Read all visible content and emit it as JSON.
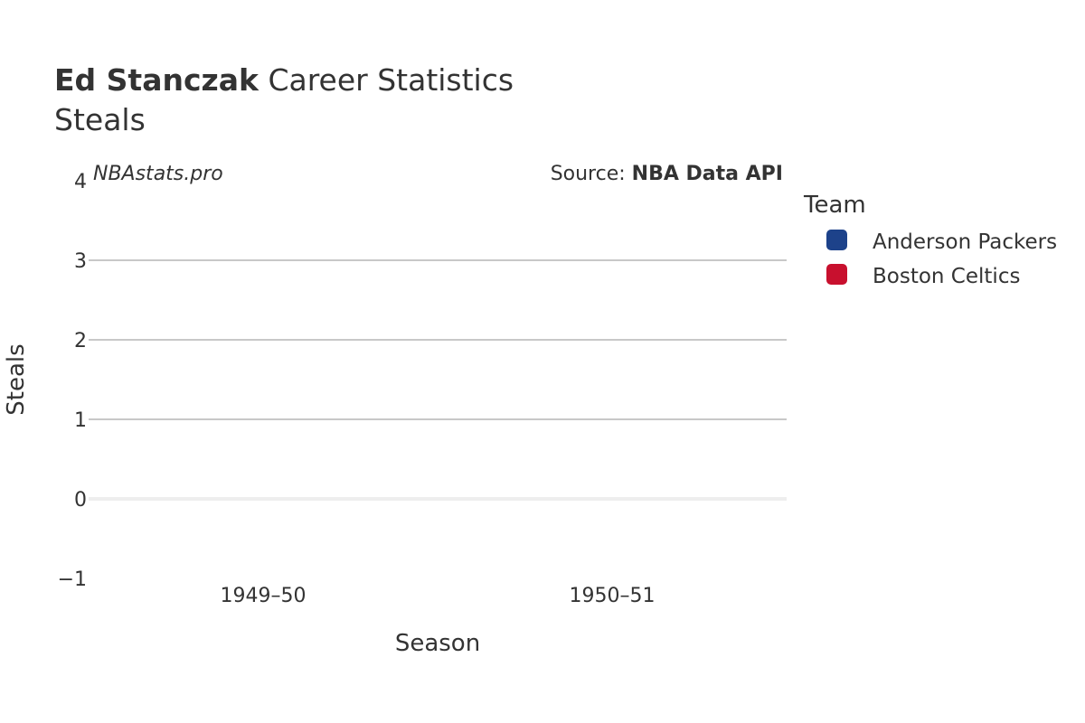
{
  "header": {
    "player_name": "Ed Stanczak",
    "title_suffix": " Career Statistics",
    "subtitle": "Steals"
  },
  "watermark": "NBAstats.pro",
  "source": {
    "prefix": "Source: ",
    "name": "NBA Data API"
  },
  "legend": {
    "title": "Team",
    "placement": "right",
    "items": [
      {
        "label": "Anderson Packers",
        "color": "#1d428a"
      },
      {
        "label": "Boston Celtics",
        "color": "#c8102e"
      }
    ]
  },
  "chart_data": {
    "type": "bar",
    "title": "Ed Stanczak Career Statistics",
    "subtitle": "Steals",
    "xlabel": "Season",
    "ylabel": "Steals",
    "categories": [
      "1949–50",
      "1950–51"
    ],
    "series": [
      {
        "name": "Anderson Packers",
        "color": "#1d428a",
        "values": [
          null,
          null
        ]
      },
      {
        "name": "Boston Celtics",
        "color": "#c8102e",
        "values": [
          null,
          null
        ]
      }
    ],
    "ylim": [
      -1,
      4
    ],
    "yticks": [
      -1,
      0,
      1,
      2,
      3,
      4
    ],
    "ytick_labels": [
      "−1",
      "0",
      "1",
      "2",
      "3",
      "4"
    ],
    "grid": true,
    "legend_position": "right"
  }
}
